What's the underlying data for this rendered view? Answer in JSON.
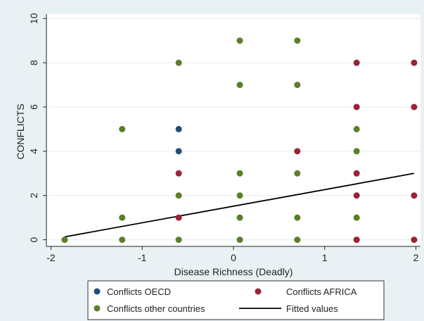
{
  "chart_data": {
    "type": "scatter",
    "title": "",
    "xlabel": "Disease Richness (Deadly)",
    "ylabel": "CONFLICTS",
    "xlim": [
      -2.05,
      2.05
    ],
    "ylim": [
      -0.3,
      10.2
    ],
    "xticks": [
      -2,
      -1,
      0,
      1,
      2
    ],
    "xtick_labels": [
      "-2",
      "-1",
      "0",
      "1",
      "2"
    ],
    "yticks": [
      0,
      2,
      4,
      6,
      8,
      10
    ],
    "ytick_labels": [
      "0",
      "2",
      "4",
      "6",
      "8",
      "10"
    ],
    "grid": "horizontal",
    "legend_position": "bottom",
    "colors": {
      "oecd": "#1f4e79",
      "africa": "#9b2335",
      "other": "#5a7f2a",
      "fitted": "#000000",
      "plot_background": "#ffffff",
      "page_background": "#eaf1f5",
      "grid": "#e4ebf0"
    },
    "series": [
      {
        "name": "Conflicts OECD",
        "key": "oecd",
        "points": [
          [
            -0.6,
            5
          ],
          [
            -0.6,
            4
          ]
        ]
      },
      {
        "name": "Conflicts AFRICA",
        "key": "africa",
        "points": [
          [
            -0.6,
            3
          ],
          [
            -0.6,
            1
          ],
          [
            0.7,
            4
          ],
          [
            1.35,
            8
          ],
          [
            1.35,
            6
          ],
          [
            1.35,
            3
          ],
          [
            1.35,
            2
          ],
          [
            1.35,
            0
          ],
          [
            1.98,
            8
          ],
          [
            1.98,
            6
          ],
          [
            1.98,
            2
          ],
          [
            1.98,
            0
          ]
        ]
      },
      {
        "name": "Conflicts other countries",
        "key": "other",
        "points": [
          [
            -1.85,
            0
          ],
          [
            -1.22,
            5
          ],
          [
            -1.22,
            1
          ],
          [
            -1.22,
            0
          ],
          [
            -0.6,
            8
          ],
          [
            -0.6,
            2
          ],
          [
            -0.6,
            0
          ],
          [
            0.07,
            9
          ],
          [
            0.07,
            7
          ],
          [
            0.07,
            3
          ],
          [
            0.07,
            2
          ],
          [
            0.07,
            1
          ],
          [
            0.07,
            0
          ],
          [
            0.7,
            9
          ],
          [
            0.7,
            7
          ],
          [
            0.7,
            3
          ],
          [
            0.7,
            1
          ],
          [
            0.7,
            0
          ],
          [
            1.35,
            5
          ],
          [
            1.35,
            4
          ],
          [
            1.35,
            1
          ]
        ]
      }
    ],
    "fitted": {
      "name": "Fitted values",
      "x": [
        -1.85,
        1.98
      ],
      "y": [
        0.13,
        3.0
      ]
    },
    "legend": [
      {
        "label": "Conflicts OECD",
        "key": "oecd",
        "kind": "marker"
      },
      {
        "label": "Conflicts AFRICA",
        "key": "africa",
        "kind": "marker"
      },
      {
        "label": "Conflicts other countries",
        "key": "other",
        "kind": "marker"
      },
      {
        "label": "Fitted values",
        "key": "fitted",
        "kind": "line"
      }
    ]
  }
}
